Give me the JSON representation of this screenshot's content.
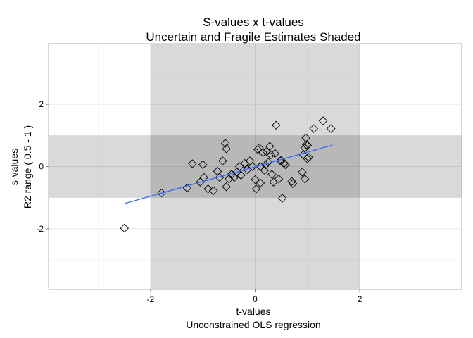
{
  "chart_data": {
    "type": "scatter",
    "title_lines": [
      "S-values x t-values",
      "Uncertain and Fragile Estimates Shaded"
    ],
    "xlabel_lines": [
      "t-values",
      "Unconstrained OLS regression"
    ],
    "ylabel_lines": [
      "s-values",
      "R2 range ( 0.5 - 1 )"
    ],
    "xlim": [
      -3.95,
      3.95
    ],
    "ylim": [
      -3.95,
      3.95
    ],
    "xticks": [
      {
        "value": -2,
        "label": "-2"
      },
      {
        "value": 0,
        "label": "0"
      },
      {
        "value": 2,
        "label": "2"
      }
    ],
    "yticks": [
      {
        "value": -2,
        "label": "-2"
      },
      {
        "value": 0,
        "label": "0"
      },
      {
        "value": 2,
        "label": "2"
      }
    ],
    "shaded_x": [
      -2,
      2
    ],
    "shaded_y": [
      -1,
      1
    ],
    "grid": true,
    "marker": "diamond-open",
    "fit_line": {
      "x": [
        -2.48,
        1.48
      ],
      "y": [
        -1.18,
        0.69
      ],
      "color": "#3366ff"
    },
    "points": [
      {
        "x": -2.5,
        "y": -1.98
      },
      {
        "x": -1.79,
        "y": -0.85
      },
      {
        "x": -1.3,
        "y": -0.69
      },
      {
        "x": -1.2,
        "y": 0.09
      },
      {
        "x": -1.05,
        "y": -0.5
      },
      {
        "x": -1.0,
        "y": 0.06
      },
      {
        "x": -0.98,
        "y": -0.35
      },
      {
        "x": -0.9,
        "y": -0.72
      },
      {
        "x": -0.8,
        "y": -0.78
      },
      {
        "x": -0.72,
        "y": -0.15
      },
      {
        "x": -0.68,
        "y": -0.35
      },
      {
        "x": -0.62,
        "y": 0.18
      },
      {
        "x": -0.57,
        "y": 0.75
      },
      {
        "x": -0.55,
        "y": 0.57
      },
      {
        "x": -0.55,
        "y": -0.65
      },
      {
        "x": -0.5,
        "y": -0.4
      },
      {
        "x": -0.45,
        "y": -0.25
      },
      {
        "x": -0.4,
        "y": -0.35
      },
      {
        "x": -0.35,
        "y": -0.18
      },
      {
        "x": -0.3,
        "y": 0.0
      },
      {
        "x": -0.27,
        "y": -0.28
      },
      {
        "x": -0.2,
        "y": 0.1
      },
      {
        "x": -0.15,
        "y": -0.1
      },
      {
        "x": -0.1,
        "y": 0.18
      },
      {
        "x": -0.05,
        "y": 0.0
      },
      {
        "x": 0.0,
        "y": -0.42
      },
      {
        "x": 0.02,
        "y": -0.72
      },
      {
        "x": 0.05,
        "y": 0.55
      },
      {
        "x": 0.08,
        "y": 0.6
      },
      {
        "x": 0.1,
        "y": 0.0
      },
      {
        "x": 0.1,
        "y": -0.53
      },
      {
        "x": 0.15,
        "y": 0.45
      },
      {
        "x": 0.18,
        "y": -0.12
      },
      {
        "x": 0.2,
        "y": 0.05
      },
      {
        "x": 0.22,
        "y": 0.48
      },
      {
        "x": 0.25,
        "y": 0.14
      },
      {
        "x": 0.28,
        "y": 0.65
      },
      {
        "x": 0.3,
        "y": 0.38
      },
      {
        "x": 0.32,
        "y": -0.25
      },
      {
        "x": 0.35,
        "y": -0.5
      },
      {
        "x": 0.38,
        "y": 0.42
      },
      {
        "x": 0.4,
        "y": 1.33
      },
      {
        "x": 0.45,
        "y": -0.4
      },
      {
        "x": 0.48,
        "y": 0.18
      },
      {
        "x": 0.5,
        "y": 0.2
      },
      {
        "x": 0.52,
        "y": -1.02
      },
      {
        "x": 0.55,
        "y": 0.1
      },
      {
        "x": 0.58,
        "y": 0.06
      },
      {
        "x": 0.7,
        "y": -0.48
      },
      {
        "x": 0.72,
        "y": -0.55
      },
      {
        "x": 0.9,
        "y": -0.18
      },
      {
        "x": 0.92,
        "y": 0.38
      },
      {
        "x": 0.95,
        "y": 0.6
      },
      {
        "x": 0.95,
        "y": -0.4
      },
      {
        "x": 0.97,
        "y": 0.92
      },
      {
        "x": 0.98,
        "y": 0.7
      },
      {
        "x": 1.0,
        "y": 0.25
      },
      {
        "x": 1.0,
        "y": 0.68
      },
      {
        "x": 1.02,
        "y": 0.3
      },
      {
        "x": 1.12,
        "y": 1.22
      },
      {
        "x": 1.3,
        "y": 1.47
      },
      {
        "x": 1.45,
        "y": 1.22
      }
    ]
  }
}
